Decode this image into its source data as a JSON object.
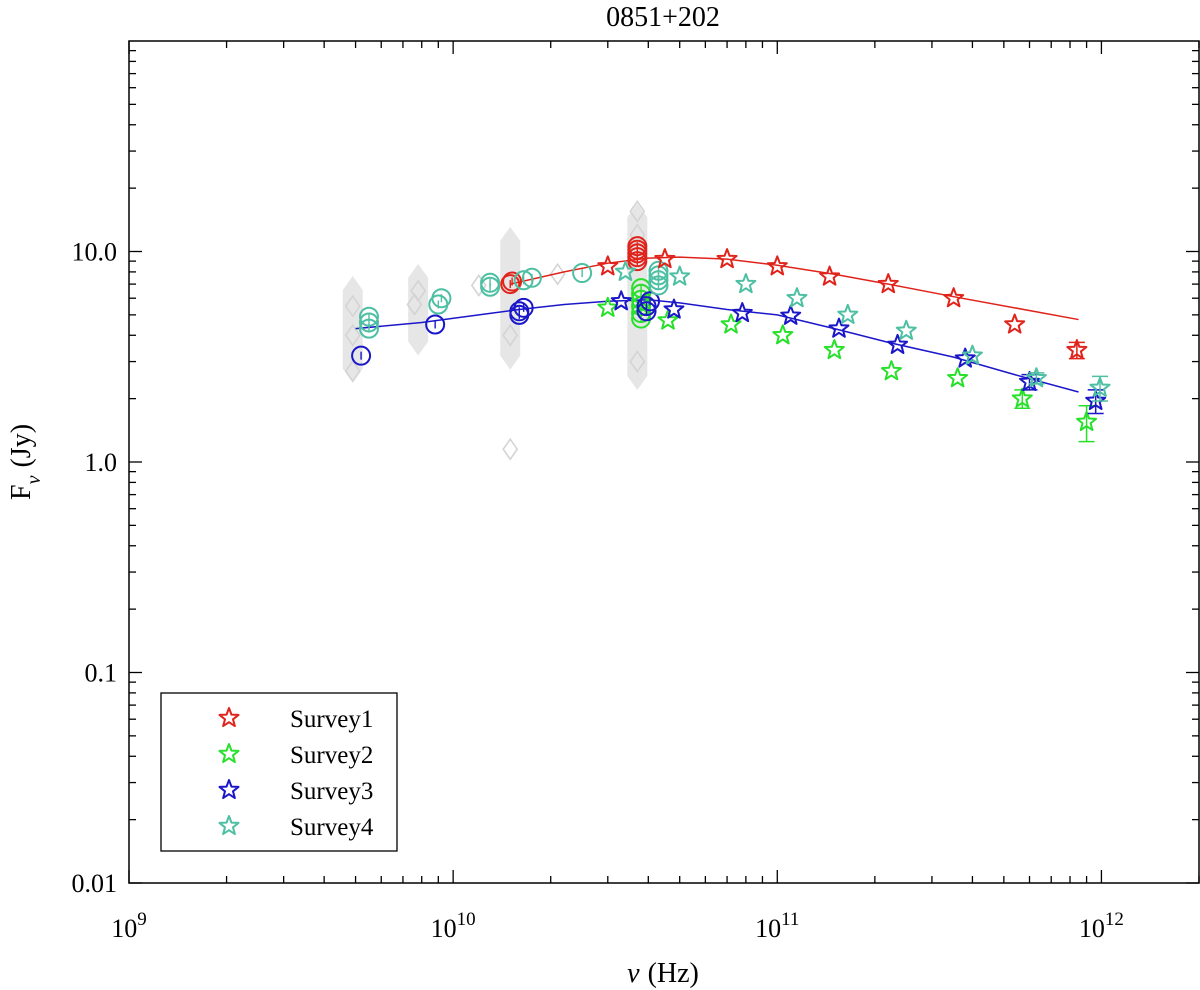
{
  "chart_data": {
    "type": "scatter",
    "title": "0851+202",
    "xscale": "log",
    "yscale": "log",
    "xlim": [
      1000000000.0,
      2000000000000.0
    ],
    "ylim": [
      0.01,
      100
    ],
    "xlabel_symbol": "ν",
    "xlabel_unit": "(Hz)",
    "ylabel_main": "F",
    "ylabel_sub": "ν",
    "ylabel_unit": "(Jy)",
    "x_ticks": [
      {
        "value": 1000000000.0,
        "base": "10",
        "exp": "9"
      },
      {
        "value": 10000000000.0,
        "base": "10",
        "exp": "10"
      },
      {
        "value": 100000000000.0,
        "base": "10",
        "exp": "11"
      },
      {
        "value": 1000000000000.0,
        "base": "10",
        "exp": "12"
      }
    ],
    "y_ticks": [
      {
        "value": 0.01,
        "label": "0.01"
      },
      {
        "value": 0.1,
        "label": "0.1"
      },
      {
        "value": 1,
        "label": "1.0"
      },
      {
        "value": 10,
        "label": "10.0"
      }
    ],
    "legend": {
      "placement": "bottom-left"
    },
    "colors": {
      "survey1": "#e0231b",
      "survey2": "#27e02a",
      "survey3": "#1b17c9",
      "survey4": "#4dbfa3",
      "archive": "#d4d4d4",
      "archive_band": "#e6e6e6"
    },
    "series": [
      {
        "name": "Survey1",
        "color": "#e0231b",
        "marker": "star",
        "points": [
          {
            "x": 30000000000.0,
            "y": 8.5
          },
          {
            "x": 45000000000.0,
            "y": 9.2
          },
          {
            "x": 70000000000.0,
            "y": 9.2
          },
          {
            "x": 100000000000.0,
            "y": 8.5
          },
          {
            "x": 145000000000.0,
            "y": 7.6
          },
          {
            "x": 220000000000.0,
            "y": 7.0
          },
          {
            "x": 350000000000.0,
            "y": 6.0
          },
          {
            "x": 540000000000.0,
            "y": 4.5
          },
          {
            "x": 840000000000.0,
            "y": 3.4,
            "err": 0.3
          }
        ],
        "circles": [
          {
            "x": 15000000000.0,
            "y": 7.0
          },
          {
            "x": 15200000000.0,
            "y": 7.2
          },
          {
            "x": 37000000000.0,
            "y": 9.0
          },
          {
            "x": 37000000000.0,
            "y": 9.4
          },
          {
            "x": 37000000000.0,
            "y": 9.8
          },
          {
            "x": 37000000000.0,
            "y": 10.2
          },
          {
            "x": 37000000000.0,
            "y": 10.6
          }
        ],
        "fit": [
          {
            "x": 15000000000.0,
            "y": 7.0
          },
          {
            "x": 22000000000.0,
            "y": 8.0
          },
          {
            "x": 30000000000.0,
            "y": 8.8
          },
          {
            "x": 40000000000.0,
            "y": 9.3
          },
          {
            "x": 50000000000.0,
            "y": 9.4
          },
          {
            "x": 70000000000.0,
            "y": 9.2
          },
          {
            "x": 100000000000.0,
            "y": 8.6
          },
          {
            "x": 150000000000.0,
            "y": 7.8
          },
          {
            "x": 220000000000.0,
            "y": 7.0
          },
          {
            "x": 350000000000.0,
            "y": 6.1
          },
          {
            "x": 540000000000.0,
            "y": 5.4
          },
          {
            "x": 850000000000.0,
            "y": 4.75
          }
        ]
      },
      {
        "name": "Survey2",
        "color": "#27e02a",
        "marker": "star",
        "points": [
          {
            "x": 30000000000.0,
            "y": 5.4
          },
          {
            "x": 46000000000.0,
            "y": 4.7
          },
          {
            "x": 72000000000.0,
            "y": 4.5
          },
          {
            "x": 104000000000.0,
            "y": 4.0
          },
          {
            "x": 150000000000.0,
            "y": 3.4
          },
          {
            "x": 225000000000.0,
            "y": 2.7
          },
          {
            "x": 360000000000.0,
            "y": 2.5
          },
          {
            "x": 570000000000.0,
            "y": 2.0,
            "err": 0.2
          },
          {
            "x": 900000000000.0,
            "y": 1.55,
            "err": 0.3
          }
        ],
        "circles": [
          {
            "x": 38000000000.0,
            "y": 4.8
          },
          {
            "x": 38000000000.0,
            "y": 5.1
          },
          {
            "x": 38000000000.0,
            "y": 5.5
          },
          {
            "x": 38000000000.0,
            "y": 5.9
          },
          {
            "x": 38000000000.0,
            "y": 6.3
          },
          {
            "x": 38000000000.0,
            "y": 6.7
          }
        ],
        "fit": []
      },
      {
        "name": "Survey3",
        "color": "#1b17c9",
        "marker": "star",
        "points": [
          {
            "x": 33000000000.0,
            "y": 5.8
          },
          {
            "x": 48000000000.0,
            "y": 5.3
          },
          {
            "x": 78000000000.0,
            "y": 5.1
          },
          {
            "x": 110000000000.0,
            "y": 4.95
          },
          {
            "x": 155000000000.0,
            "y": 4.3
          },
          {
            "x": 235000000000.0,
            "y": 3.6
          },
          {
            "x": 380000000000.0,
            "y": 3.1
          },
          {
            "x": 600000000000.0,
            "y": 2.4,
            "err": 0.2
          },
          {
            "x": 960000000000.0,
            "y": 1.95,
            "err": 0.25
          }
        ],
        "circles": [
          {
            "x": 5200000000.0,
            "y": 3.2,
            "err": 0.25
          },
          {
            "x": 8800000000.0,
            "y": 4.5
          },
          {
            "x": 16000000000.0,
            "y": 5.0
          },
          {
            "x": 16000000000.0,
            "y": 5.2
          },
          {
            "x": 16500000000.0,
            "y": 5.4
          },
          {
            "x": 39500000000.0,
            "y": 5.2
          },
          {
            "x": 39500000000.0,
            "y": 5.5
          },
          {
            "x": 40500000000.0,
            "y": 5.8
          }
        ],
        "fit": [
          {
            "x": 5000000000.0,
            "y": 4.3
          },
          {
            "x": 8000000000.0,
            "y": 4.6
          },
          {
            "x": 12000000000.0,
            "y": 5.0
          },
          {
            "x": 16000000000.0,
            "y": 5.3
          },
          {
            "x": 22000000000.0,
            "y": 5.6
          },
          {
            "x": 30000000000.0,
            "y": 5.8
          },
          {
            "x": 40000000000.0,
            "y": 5.9
          },
          {
            "x": 50000000000.0,
            "y": 5.7
          },
          {
            "x": 70000000000.0,
            "y": 5.3
          },
          {
            "x": 100000000000.0,
            "y": 5.0
          },
          {
            "x": 150000000000.0,
            "y": 4.3
          },
          {
            "x": 220000000000.0,
            "y": 3.7
          },
          {
            "x": 350000000000.0,
            "y": 3.15
          },
          {
            "x": 540000000000.0,
            "y": 2.6
          },
          {
            "x": 850000000000.0,
            "y": 2.15
          }
        ]
      },
      {
        "name": "Survey4",
        "color": "#4dbfa3",
        "marker": "star",
        "points": [
          {
            "x": 34000000000.0,
            "y": 8.0
          },
          {
            "x": 50000000000.0,
            "y": 7.6
          },
          {
            "x": 80000000000.0,
            "y": 7.0
          },
          {
            "x": 115000000000.0,
            "y": 6.0
          },
          {
            "x": 165000000000.0,
            "y": 5.0
          },
          {
            "x": 250000000000.0,
            "y": 4.2
          },
          {
            "x": 400000000000.0,
            "y": 3.2
          },
          {
            "x": 630000000000.0,
            "y": 2.5,
            "err": 0.15
          },
          {
            "x": 990000000000.0,
            "y": 2.25,
            "err": 0.3
          }
        ],
        "circles": [
          {
            "x": 5500000000.0,
            "y": 4.3
          },
          {
            "x": 5500000000.0,
            "y": 4.6
          },
          {
            "x": 5500000000.0,
            "y": 4.9
          },
          {
            "x": 9000000000.0,
            "y": 5.6
          },
          {
            "x": 9200000000.0,
            "y": 6.0
          },
          {
            "x": 13000000000.0,
            "y": 6.8
          },
          {
            "x": 13000000000.0,
            "y": 7.1
          },
          {
            "x": 16500000000.0,
            "y": 7.3
          },
          {
            "x": 17500000000.0,
            "y": 7.5
          },
          {
            "x": 25000000000.0,
            "y": 7.9
          },
          {
            "x": 43000000000.0,
            "y": 6.9
          },
          {
            "x": 43000000000.0,
            "y": 7.3
          },
          {
            "x": 43000000000.0,
            "y": 7.7
          },
          {
            "x": 43000000000.0,
            "y": 8.1
          }
        ],
        "fit": []
      }
    ],
    "archive_bands": [
      {
        "x": 4900000000.0,
        "ymin": 2.6,
        "ymax": 7.0
      },
      {
        "x": 7800000000.0,
        "ymin": 3.5,
        "ymax": 8.0
      },
      {
        "x": 15000000000.0,
        "ymin": 3.0,
        "ymax": 12.0
      },
      {
        "x": 37000000000.0,
        "ymin": 2.4,
        "ymax": 15.5
      }
    ],
    "archive_points": [
      {
        "x": 4900000000.0,
        "y": 2.7
      },
      {
        "x": 4900000000.0,
        "y": 4.0
      },
      {
        "x": 4900000000.0,
        "y": 5.5
      },
      {
        "x": 7600000000.0,
        "y": 5.6
      },
      {
        "x": 7800000000.0,
        "y": 6.5
      },
      {
        "x": 12000000000.0,
        "y": 6.9
      },
      {
        "x": 15000000000.0,
        "y": 1.15
      },
      {
        "x": 15000000000.0,
        "y": 4.0
      },
      {
        "x": 21000000000.0,
        "y": 7.8
      },
      {
        "x": 37000000000.0,
        "y": 3.0
      },
      {
        "x": 37000000000.0,
        "y": 12.0
      },
      {
        "x": 37000000000.0,
        "y": 15.5
      }
    ]
  }
}
